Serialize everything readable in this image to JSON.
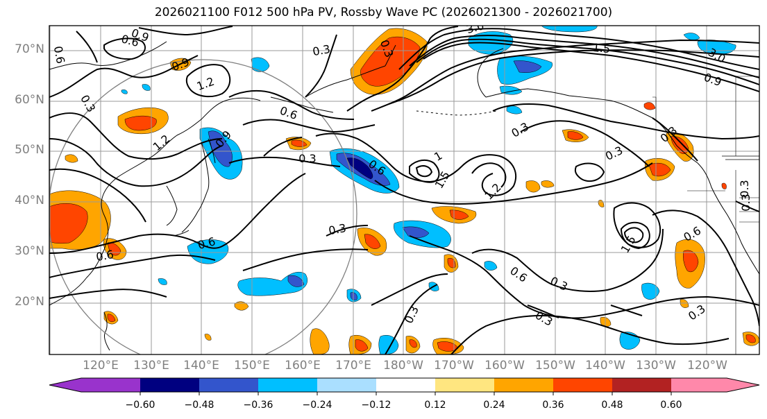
{
  "title": "2026021100 F012 500 hPa PV, Rossby Wave PC (2026021300 - 2026021700)",
  "lat_labels": [
    "70°N",
    "60°N",
    "50°N",
    "40°N",
    "30°N",
    "20°N"
  ],
  "lon_labels": [
    "120°E",
    "130°E",
    "140°E",
    "150°E",
    "160°E",
    "170°E",
    "180°W",
    "170°W",
    "160°W",
    "150°W",
    "140°W",
    "130°W",
    "120°W"
  ],
  "colorbar": {
    "ticks": [
      "−0.60",
      "−0.48",
      "−0.36",
      "−0.24",
      "−0.12",
      "0.12",
      "0.24",
      "0.36",
      "0.48",
      "0.60"
    ],
    "colors": [
      "#9933cc",
      "#000080",
      "#3355cc",
      "#00bfff",
      "#aadfff",
      "#ffffff",
      "#ffe680",
      "#ffa500",
      "#ff4500",
      "#b22222",
      "#ff88aa"
    ]
  },
  "contour_labels": [
    {
      "text": "0.9"
    },
    {
      "text": "0.6"
    },
    {
      "text": "0.9"
    },
    {
      "text": "1.2"
    },
    {
      "text": "0.3"
    },
    {
      "text": "1.2"
    },
    {
      "text": "0.9"
    },
    {
      "text": "0.6"
    },
    {
      "text": "0.3"
    },
    {
      "text": "0.6"
    },
    {
      "text": "0.3"
    },
    {
      "text": "3.0"
    },
    {
      "text": "1.5"
    },
    {
      "text": "0.3"
    },
    {
      "text": "1"
    },
    {
      "text": "1.5"
    },
    {
      "text": "1.2"
    },
    {
      "text": "0.3"
    },
    {
      "text": "0.3"
    },
    {
      "text": "0.6"
    },
    {
      "text": "0.3"
    },
    {
      "text": "0.6"
    },
    {
      "text": "0.6"
    },
    {
      "text": "0.3"
    },
    {
      "text": "0.3"
    },
    {
      "text": "0.3"
    },
    {
      "text": "1.5"
    },
    {
      "text": "0.6"
    },
    {
      "text": "0.3"
    },
    {
      "text": "0.3"
    },
    {
      "text": "3.0"
    },
    {
      "text": "0.9"
    },
    {
      "text": "0.3"
    },
    {
      "text": "0.6"
    },
    {
      "text": "0.3"
    }
  ]
}
